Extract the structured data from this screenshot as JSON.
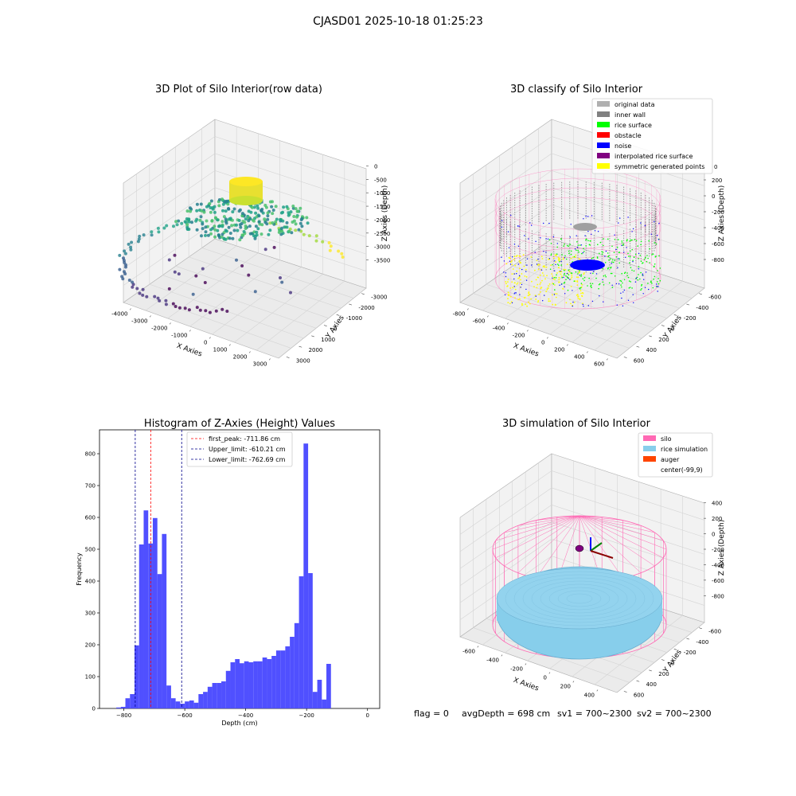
{
  "figure_title": "CJASD01 2025-10-18 01:25:23",
  "status_line": {
    "flag": "flag = 0",
    "avg_depth": "avgDepth = 698 cm",
    "sv1": "sv1 = 700~2300",
    "sv2": "sv2 = 700~2300"
  },
  "colors": {
    "hist_bar": "#4c4cff",
    "first_peak": "#ff0000",
    "limits": "#00008b",
    "silo": "#ff69b4",
    "rice": "#87ceeb",
    "auger": "#ff4500",
    "inner_wall": "#808080",
    "rice_surface": "#00ff00",
    "obstacle": "#ff0000",
    "noise": "#0000ff",
    "interpolated": "#800080",
    "symmetric": "#ffff00",
    "original": "#b0b0b0"
  },
  "chart_data": [
    {
      "type": "scatter",
      "title": "3D Plot of Silo Interior(row data)",
      "xlabel": "X Axies",
      "ylabel": "Y Axies",
      "zlabel": "Z Axies (Depth)",
      "xticks": [
        "-4000",
        "-3000",
        "-2000",
        "-1000",
        "0",
        "1000",
        "2000",
        "3000"
      ],
      "yticks": [
        "3000",
        "2000",
        "1000",
        "0",
        "-1000",
        "-2000",
        "-3000"
      ],
      "zticks": [
        "0",
        "-500",
        "-1000",
        "-1500",
        "-2000",
        "-2500",
        "-3000",
        "-3500"
      ],
      "xlim": [
        -4000,
        3000
      ],
      "ylim": [
        -3000,
        3000
      ],
      "zlim": [
        -3700,
        0
      ]
    },
    {
      "type": "scatter",
      "title": "3D classify of Silo Interior",
      "xlabel": "X Axies",
      "ylabel": "Y Axies",
      "zlabel": "Z Axies (Depth)",
      "xticks": [
        "-800",
        "-600",
        "-400",
        "-200",
        "0",
        "200",
        "400",
        "600"
      ],
      "yticks": [
        "600",
        "400",
        "200",
        "0",
        "-200",
        "-400",
        "-600"
      ],
      "zticks": [
        "200",
        "0",
        "-200",
        "-400",
        "-600",
        "-800"
      ],
      "legend": [
        "original data",
        "inner wall",
        "rice surface",
        "obstacle",
        "noise",
        "interpolated rice surface",
        "symmetric generated points"
      ],
      "legend_extra_tick": "0",
      "legend_position": "top-right"
    },
    {
      "type": "bar",
      "title": "Histogram of Z-Axies (Height) Values",
      "xlabel": "Depth (cm)",
      "ylabel": "Frequency",
      "xlim": [
        -880,
        40
      ],
      "ylim": [
        0,
        875
      ],
      "xticks": [
        -800,
        -600,
        -400,
        -200,
        0
      ],
      "yticks": [
        0,
        100,
        200,
        300,
        400,
        500,
        600,
        700,
        800
      ],
      "bin_width": 15,
      "bin_start": -825,
      "values": [
        3,
        5,
        32,
        45,
        198,
        515,
        622,
        518,
        598,
        422,
        548,
        72,
        32,
        22,
        15,
        22,
        25,
        18,
        45,
        52,
        68,
        80,
        80,
        85,
        118,
        145,
        155,
        142,
        148,
        145,
        148,
        148,
        160,
        155,
        165,
        182,
        182,
        195,
        225,
        268,
        415,
        832,
        425,
        52,
        90,
        28,
        140
      ],
      "vlines": [
        {
          "label": "first_peak: -711.86 cm",
          "x": -711.86,
          "style": "red"
        },
        {
          "label": "Upper_limit: -610.21 cm",
          "x": -610.21,
          "style": "blue"
        },
        {
          "label": "Lower_limit: -762.69 cm",
          "x": -762.69,
          "style": "blue"
        }
      ],
      "legend_position": "top-center"
    },
    {
      "type": "scatter",
      "title": "3D simulation of Silo Interior",
      "xlabel": "X Axies",
      "ylabel": "Y Axies",
      "zlabel": "Z Axies (Depth)",
      "xticks": [
        "-600",
        "-400",
        "-200",
        "0",
        "200",
        "400"
      ],
      "yticks": [
        "600",
        "400",
        "200",
        "0",
        "-200",
        "-400",
        "-600"
      ],
      "zticks": [
        "400",
        "200",
        "0",
        "-200",
        "-400",
        "-600",
        "-800"
      ],
      "legend": [
        "silo",
        "rice simulation",
        "auger",
        "center(-99,9)"
      ],
      "legend_position": "top-right"
    }
  ]
}
